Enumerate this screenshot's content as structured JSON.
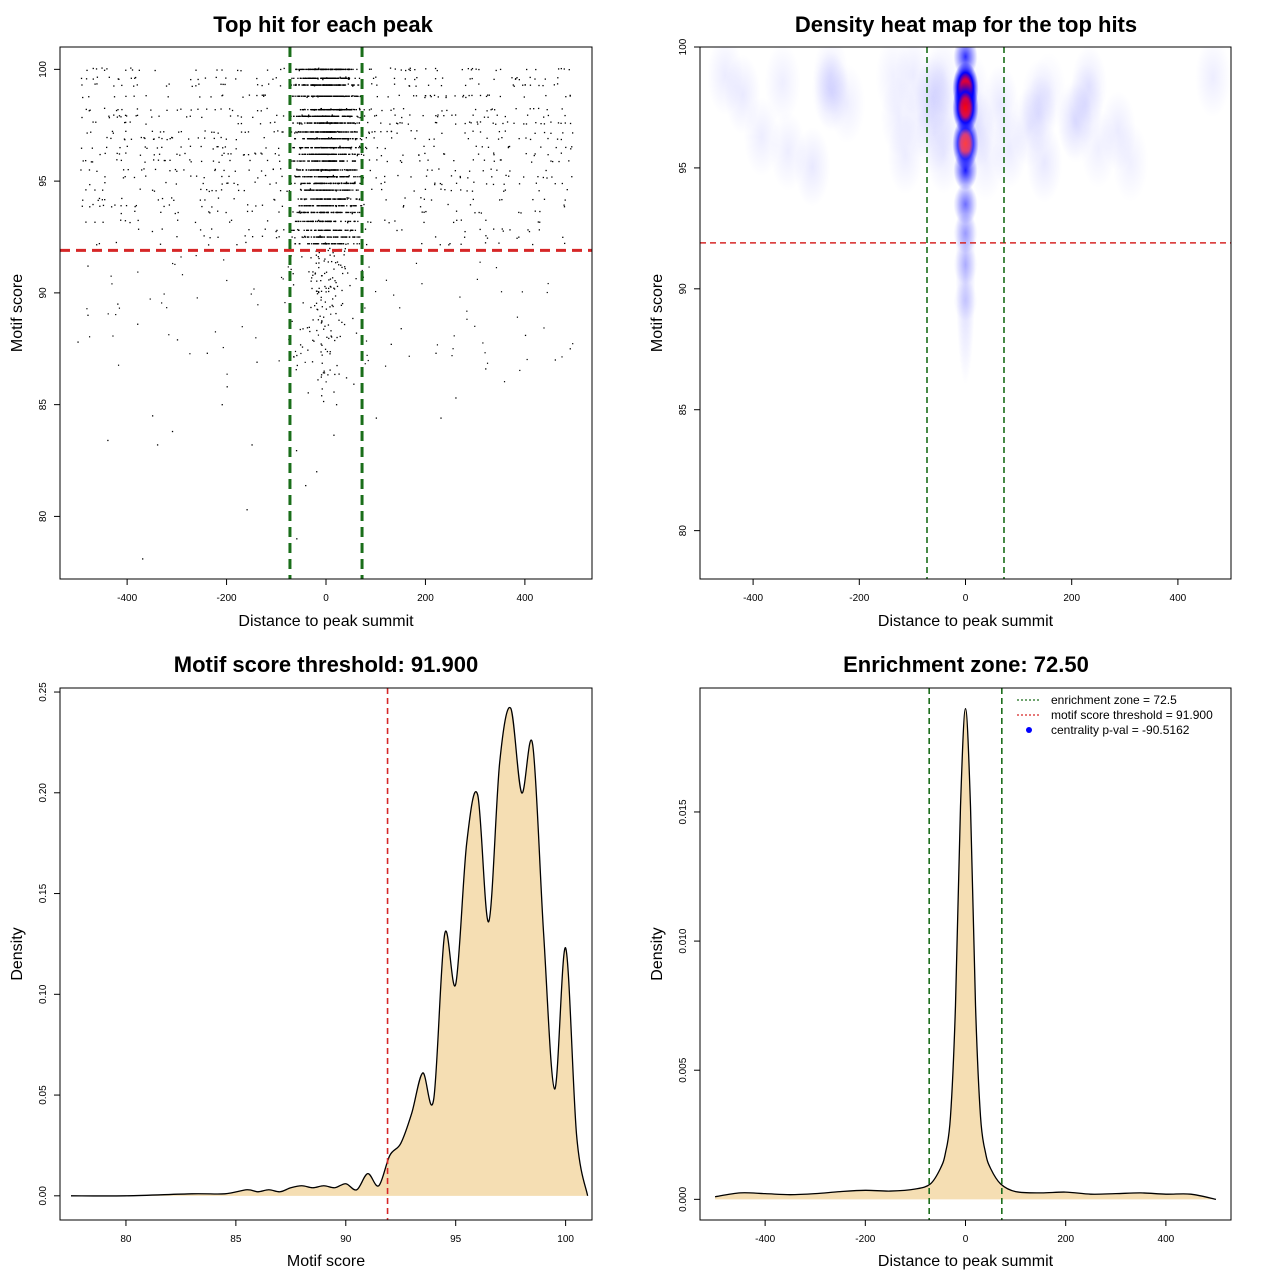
{
  "chart_data": [
    {
      "type": "scatter",
      "title": "Top hit for each peak",
      "xlabel": "Distance to peak summit",
      "ylabel": "Motif score",
      "xlim": [
        -535,
        535
      ],
      "ylim": [
        77.2,
        101.0
      ],
      "xticks": [
        "-400",
        "-200",
        "0",
        "200",
        "400"
      ],
      "xtick_values": [
        -400,
        -200,
        0,
        200,
        400
      ],
      "yticks": [
        "80",
        "85",
        "90",
        "95",
        "100"
      ],
      "ytick_values": [
        80,
        85,
        90,
        95,
        100
      ],
      "points_note_values": {
        "score_levels_dense": [
          100.0,
          99.6,
          99.3,
          98.8,
          98.2,
          97.9,
          97.6,
          97.2,
          96.9,
          96.5,
          96.2,
          95.9,
          95.5,
          95.2,
          94.9,
          94.6,
          94.2,
          93.9,
          93.6,
          93.2,
          92.8,
          92.5,
          92.2
        ],
        "sparse_points": [
          [
            -480,
            91.2
          ],
          [
            -420,
            89.5
          ],
          [
            -380,
            88.6
          ],
          [
            -300,
            87.9
          ],
          [
            -240,
            87.3
          ],
          [
            -200,
            85.8
          ],
          [
            -140,
            86.9
          ],
          [
            -60,
            87.2
          ],
          [
            -20,
            82.0
          ],
          [
            -5,
            86.5
          ],
          [
            20,
            85.0
          ],
          [
            40,
            86.2
          ],
          [
            60,
            88.2
          ],
          [
            150,
            88.4
          ],
          [
            220,
            87.3
          ],
          [
            260,
            85.3
          ],
          [
            320,
            86.6
          ],
          [
            400,
            88.1
          ],
          [
            460,
            87.0
          ],
          [
            490,
            87.5
          ],
          [
            -370,
            78.1
          ],
          [
            -160,
            80.3
          ],
          [
            -350,
            84.5
          ],
          [
            -440,
            83.4
          ],
          [
            -340,
            83.2
          ],
          [
            -310,
            83.8
          ],
          [
            -150,
            83.2
          ],
          [
            -210,
            85.0
          ],
          [
            -500,
            87.8
          ],
          [
            -480,
            89.0
          ],
          [
            130,
            87.7
          ],
          [
            100,
            84.4
          ],
          [
            230,
            84.4
          ],
          [
            -60,
            79.0
          ],
          [
            -10,
            85.4
          ]
        ]
      },
      "hlines": [
        {
          "y": 91.9,
          "color": "#d62728",
          "style": "dashed"
        }
      ],
      "vlines": [
        {
          "x": -72.5,
          "color": "#1a6e1a",
          "style": "dashed"
        },
        {
          "x": 72.5,
          "color": "#1a6e1a",
          "style": "dashed"
        }
      ],
      "grid": false
    },
    {
      "type": "heatmap",
      "title": "Density heat map for the top hits",
      "xlabel": "Distance to peak summit",
      "ylabel": "Motif score",
      "xlim": [
        -500,
        500
      ],
      "ylim": [
        78.0,
        100.0
      ],
      "xticks": [
        "-400",
        "-200",
        "0",
        "200",
        "400"
      ],
      "xtick_values": [
        -400,
        -200,
        0,
        200,
        400
      ],
      "yticks": [
        "80",
        "85",
        "90",
        "95",
        "100"
      ],
      "ytick_values": [
        80,
        85,
        90,
        95,
        100
      ],
      "color_scale": [
        "#ffffff",
        "#0000ff",
        "#ff0000"
      ],
      "hotspots": [
        {
          "x": 0,
          "y": 99.6,
          "intensity": 0.55
        },
        {
          "x": 0,
          "y": 98.3,
          "intensity": 1.0
        },
        {
          "x": 0,
          "y": 97.5,
          "intensity": 0.95
        },
        {
          "x": 0,
          "y": 96.0,
          "intensity": 0.75
        },
        {
          "x": 0,
          "y": 94.9,
          "intensity": 0.6
        },
        {
          "x": 0,
          "y": 93.5,
          "intensity": 0.35
        },
        {
          "x": 0,
          "y": 92.3,
          "intensity": 0.2
        },
        {
          "x": 0,
          "y": 91.0,
          "intensity": 0.12
        },
        {
          "x": 0,
          "y": 89.5,
          "intensity": 0.08
        }
      ],
      "hlines": [
        {
          "y": 91.9,
          "color": "#d62728",
          "style": "dashed"
        }
      ],
      "vlines": [
        {
          "x": -72.5,
          "color": "#1a6e1a",
          "style": "dashed"
        },
        {
          "x": 72.5,
          "color": "#1a6e1a",
          "style": "dashed"
        }
      ],
      "grid": false
    },
    {
      "type": "area",
      "title": "Motif score threshold: 91.900",
      "xlabel": "Motif score",
      "ylabel": "Density",
      "xlim": [
        77.0,
        101.2
      ],
      "ylim": [
        -0.012,
        0.252
      ],
      "xticks": [
        "80",
        "85",
        "90",
        "95",
        "100"
      ],
      "xtick_values": [
        80,
        85,
        90,
        95,
        100
      ],
      "yticks": [
        "0.00",
        "0.05",
        "0.10",
        "0.15",
        "0.20",
        "0.25"
      ],
      "ytick_values": [
        0.0,
        0.05,
        0.1,
        0.15,
        0.2,
        0.25
      ],
      "x": [
        77.5,
        80,
        83,
        84.5,
        85.5,
        86,
        86.5,
        87,
        87.5,
        88,
        88.5,
        89,
        89.5,
        90,
        90.5,
        91,
        91.5,
        92,
        92.5,
        93,
        93.5,
        94,
        94.5,
        95,
        95.5,
        96,
        96.5,
        97,
        97.5,
        98,
        98.5,
        99,
        99.5,
        100,
        100.5,
        101
      ],
      "values": [
        0.0,
        0.0,
        0.001,
        0.001,
        0.003,
        0.002,
        0.003,
        0.002,
        0.004,
        0.005,
        0.004,
        0.005,
        0.004,
        0.006,
        0.003,
        0.011,
        0.005,
        0.02,
        0.026,
        0.041,
        0.061,
        0.048,
        0.13,
        0.105,
        0.175,
        0.199,
        0.136,
        0.215,
        0.242,
        0.2,
        0.224,
        0.13,
        0.053,
        0.123,
        0.03,
        0.0
      ],
      "fill": "#f5deb3",
      "vlines": [
        {
          "x": 91.9,
          "color": "#d62728",
          "style": "dashed"
        }
      ],
      "grid": false
    },
    {
      "type": "area",
      "title": "Enrichment zone: 72.50",
      "xlabel": "Distance to peak summit",
      "ylabel": "Density",
      "xlim": [
        -530,
        530
      ],
      "ylim": [
        -0.0008,
        0.0198
      ],
      "xticks": [
        "-400",
        "-200",
        "0",
        "200",
        "400"
      ],
      "xtick_values": [
        -400,
        -200,
        0,
        200,
        400
      ],
      "yticks": [
        "0.000",
        "0.005",
        "0.010",
        "0.015"
      ],
      "ytick_values": [
        0.0,
        0.005,
        0.01,
        0.015
      ],
      "x": [
        -500,
        -450,
        -400,
        -350,
        -300,
        -250,
        -200,
        -150,
        -100,
        -70,
        -50,
        -40,
        -30,
        -20,
        -10,
        0,
        10,
        20,
        30,
        40,
        50,
        70,
        100,
        150,
        200,
        250,
        300,
        350,
        400,
        450,
        500
      ],
      "values": [
        0.0001,
        0.00025,
        0.00022,
        0.00018,
        0.00022,
        0.0003,
        0.00035,
        0.00032,
        0.0004,
        0.0006,
        0.0012,
        0.0018,
        0.0032,
        0.0075,
        0.0152,
        0.019,
        0.0152,
        0.0075,
        0.0032,
        0.0018,
        0.0012,
        0.0006,
        0.0003,
        0.00025,
        0.00028,
        0.0002,
        0.00022,
        0.00025,
        0.0002,
        0.0002,
        0.0
      ],
      "fill": "#f5deb3",
      "vlines": [
        {
          "x": -72.5,
          "color": "#1a6e1a",
          "style": "dashed"
        },
        {
          "x": 72.5,
          "color": "#1a6e1a",
          "style": "dashed"
        }
      ],
      "legend": {
        "placement": "top-right",
        "entries": [
          {
            "label": "enrichment zone = 72.5",
            "color": "#1a6e1a",
            "marker": "dotted-line"
          },
          {
            "label": "motif score threshold = 91.900",
            "color": "#d62728",
            "marker": "dotted-line"
          },
          {
            "label": "centrality p-val = -90.5162",
            "color": "#0000ff",
            "marker": "dot"
          }
        ]
      },
      "grid": false
    }
  ]
}
